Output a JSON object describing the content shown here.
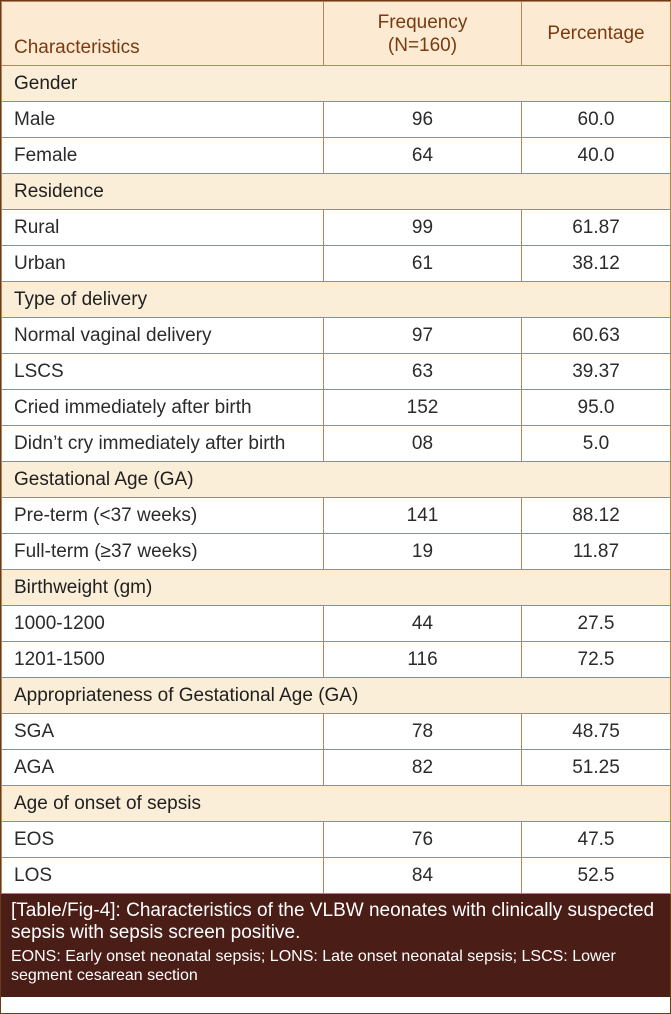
{
  "header": {
    "col1": "Characteristics",
    "col2_line1": "Frequency",
    "col2_line2": "(N=160)",
    "col3": "Percentage"
  },
  "groups": [
    {
      "title": "Gender",
      "rows": [
        {
          "label": "Male",
          "freq": "96",
          "pct": "60.0"
        },
        {
          "label": "Female",
          "freq": "64",
          "pct": "40.0"
        }
      ]
    },
    {
      "title": "Residence",
      "rows": [
        {
          "label": "Rural",
          "freq": "99",
          "pct": "61.87"
        },
        {
          "label": "Urban",
          "freq": "61",
          "pct": "38.12"
        }
      ]
    },
    {
      "title": "Type of delivery",
      "rows": [
        {
          "label": "Normal vaginal delivery",
          "freq": "97",
          "pct": "60.63"
        },
        {
          "label": "LSCS",
          "freq": "63",
          "pct": "39.37"
        },
        {
          "label": "Cried immediately after birth",
          "freq": "152",
          "pct": "95.0"
        },
        {
          "label": "Didn’t cry immediately after birth",
          "freq": "08",
          "pct": "5.0"
        }
      ]
    },
    {
      "title": "Gestational Age (GA)",
      "rows": [
        {
          "label": "Pre-term (<37 weeks)",
          "freq": "141",
          "pct": "88.12"
        },
        {
          "label": "Full-term (≥37 weeks)",
          "freq": "19",
          "pct": "11.87"
        }
      ]
    },
    {
      "title": "Birthweight (gm)",
      "rows": [
        {
          "label": "1000-1200",
          "freq": "44",
          "pct": "27.5"
        },
        {
          "label": "1201-1500",
          "freq": "116",
          "pct": "72.5"
        }
      ]
    },
    {
      "title": "Appropriateness of Gestational Age (GA)",
      "rows": [
        {
          "label": "SGA",
          "freq": "78",
          "pct": "48.75"
        },
        {
          "label": "AGA",
          "freq": "82",
          "pct": "51.25"
        }
      ]
    },
    {
      "title": "Age of onset of sepsis",
      "rows": [
        {
          "label": "EOS",
          "freq": "76",
          "pct": "47.5"
        },
        {
          "label": "LOS",
          "freq": "84",
          "pct": "52.5"
        }
      ]
    }
  ],
  "caption": {
    "tag": "[Table/Fig-4]:",
    "text": " Characteristics of the VLBW neonates with clinically suspected sepsis with sepsis screen positive.",
    "note": "EONS: Early onset neonatal sepsis; LONS: Late onset neonatal sepsis; LSCS: Lower segment cesarean section"
  },
  "colors": {
    "header_bg": "#fcebd2",
    "header_text": "#7a3a10",
    "group_bg": "#fbeed8",
    "border": "#b5845a",
    "caption_bg": "#4a1d17"
  }
}
